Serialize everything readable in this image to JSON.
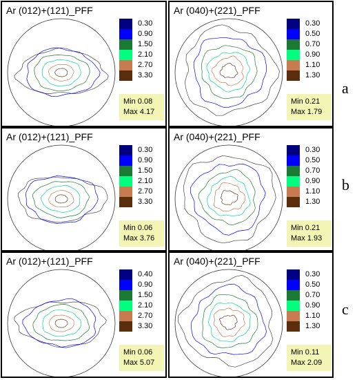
{
  "panels": [
    {
      "title": "Ar (012)+(121)_PFF",
      "legend": [
        "0.30",
        "0.90",
        "1.50",
        "2.10",
        "2.70",
        "3.30"
      ],
      "min": "Min 0.08",
      "max": "Max 4.17"
    },
    {
      "title": "Ar (040)+(221)_PFF",
      "legend": [
        "0.30",
        "0.50",
        "0.70",
        "0.90",
        "1.10",
        "1.30"
      ],
      "min": "Min 0.21",
      "max": "Max 1.79"
    },
    {
      "title": "Ar (012)+(121)_PFF",
      "legend": [
        "0.30",
        "0.90",
        "1.50",
        "2.10",
        "2.70",
        "3.30"
      ],
      "min": "Min 0.06",
      "max": "Max 3.76"
    },
    {
      "title": "Ar (040)+(221)_PFF",
      "legend": [
        "0.30",
        "0.50",
        "0.70",
        "0.90",
        "1.10",
        "1.30"
      ],
      "min": "Min 0.21",
      "max": "Max 1.93"
    },
    {
      "title": "Ar (012)+(121)_PFF",
      "legend": [
        "0.40",
        "0.90",
        "1.50",
        "2.10",
        "2.70",
        "3.30"
      ],
      "min": "Min 0.06",
      "max": "Max 5.07"
    },
    {
      "title": "Ar (040)+(221)_PFF",
      "legend": [
        "0.30",
        "0.50",
        "0.70",
        "0.90",
        "1.10",
        "1.30"
      ],
      "min": "Min 0.11",
      "max": "Max 2.09"
    }
  ],
  "row_labels": [
    "a",
    "b",
    "c"
  ],
  "legend_colors": [
    "#000080",
    "#0000ff",
    "#1a7a33",
    "#00ff7f",
    "#c87b4e",
    "#5a2d0c"
  ],
  "contour_colors": [
    "#444444",
    "#0000ff",
    "#1a7a33",
    "#00dd88",
    "#c87b4e",
    "#6b3a1a"
  ]
}
